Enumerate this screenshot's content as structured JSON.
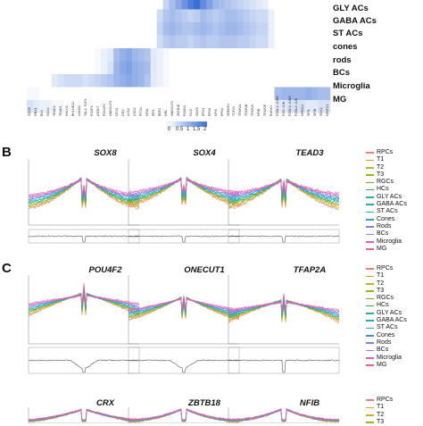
{
  "heatmap": {
    "row_labels": [
      "",
      "GLY ACs",
      "GABA ACs",
      "ST ACs",
      "cones",
      "rods",
      "BCs",
      "Microglia",
      "MG"
    ],
    "column_labels": [
      "SOX8",
      "GBX1",
      "EN1",
      "SOX4",
      "TEAD3",
      "TEAD1",
      "NHLH2",
      "BHLHE22",
      "HAND2",
      "TAL1::TCF3",
      "FOXP2",
      "ATOH7",
      "POU4F2",
      "ONECUT1",
      "OTX2",
      "CRX",
      "LHX2",
      "GSC2",
      "PITX1",
      "NFIA",
      "IRF1",
      "EBF2",
      "NRL",
      "ONECUT2",
      "ZBTB18",
      "FOXN3",
      "GLI3",
      "SOX9",
      "RFX3",
      "RFX6",
      "NFIX",
      "RFX2",
      "SREBF1",
      "TCF21",
      "TFAP2A",
      "TFAP2B",
      "TFAP2C",
      "NFIB",
      "TFAP2E",
      "RUNX1",
      "FOSL1::JUNB",
      "FOS::JUN",
      "FOSL1::JUNB",
      "FOSL2::JUN",
      "NFE2L2",
      "SPI1",
      "SPIB",
      "SOX2",
      "NFATC1"
    ],
    "colorbar": {
      "ticks": [
        "0",
        "0.5",
        "1",
        "1.5",
        "2"
      ],
      "low_color": "#ffffff",
      "high_color": "#3b6fd6"
    },
    "cells": [
      [
        0,
        0,
        0,
        0,
        0,
        0,
        0,
        0,
        0,
        0,
        0,
        0,
        0,
        0,
        0,
        0,
        0,
        0,
        0,
        0,
        0,
        0,
        0.6,
        0.9,
        1.2,
        1.5,
        1.8,
        2,
        1.6,
        1.3,
        1.0,
        0.9,
        0.8,
        0.7,
        0.6,
        0.5,
        0.4,
        0.3,
        0.2,
        0,
        0,
        0,
        0,
        0,
        0,
        0,
        0,
        0,
        0
      ],
      [
        0,
        0,
        0,
        0,
        0,
        0,
        0,
        0,
        0,
        0,
        0,
        0,
        0,
        0,
        0,
        0,
        0,
        0,
        0,
        0,
        0,
        0.5,
        0.8,
        0.9,
        0.8,
        0.7,
        0.6,
        0.7,
        0.9,
        0.8,
        0.7,
        0.8,
        0.9,
        0.9,
        0.8,
        0.7,
        0.6,
        0.5,
        0.5,
        0.2,
        0,
        0,
        0,
        0,
        0,
        0,
        0,
        0,
        0
      ],
      [
        0,
        0,
        0,
        0,
        0,
        0,
        0,
        0,
        0,
        0,
        0,
        0,
        0,
        0,
        0,
        0,
        0,
        0,
        0,
        0,
        0,
        0.6,
        0.9,
        1.0,
        0.9,
        0.8,
        0.8,
        0.9,
        1.0,
        0.9,
        0.8,
        0.9,
        1.0,
        1.0,
        0.9,
        0.8,
        0.7,
        0.6,
        0.6,
        0.2,
        0,
        0,
        0,
        0,
        0,
        0,
        0,
        0,
        0
      ],
      [
        0,
        0,
        0,
        0,
        0,
        0,
        0,
        0,
        0,
        0,
        0,
        0,
        0,
        0,
        0,
        0,
        0,
        0,
        0,
        0,
        0,
        0.5,
        0.7,
        0.8,
        0.7,
        0.7,
        0.6,
        0.7,
        0.8,
        0.7,
        0.7,
        0.8,
        0.8,
        0.8,
        0.7,
        0.7,
        0.6,
        0.5,
        0.5,
        0.2,
        0,
        0,
        0,
        0,
        0,
        0,
        0,
        0,
        0
      ],
      [
        0,
        0,
        0,
        0,
        0,
        0,
        0,
        0,
        0,
        0,
        0,
        0.1,
        0.2,
        0.3,
        0.9,
        1.1,
        1.2,
        1.0,
        0.9,
        0.8,
        0.3,
        0.2,
        0.1,
        0,
        0,
        0,
        0,
        0,
        0,
        0,
        0,
        0,
        0,
        0,
        0,
        0,
        0,
        0,
        0,
        0,
        0,
        0,
        0,
        0,
        0,
        0,
        0,
        0,
        0
      ],
      [
        0,
        0,
        0,
        0,
        0,
        0,
        0,
        0,
        0,
        0,
        0,
        0.1,
        0.2,
        0.4,
        1.0,
        1.2,
        1.3,
        1.1,
        1.0,
        0.9,
        0.3,
        0.2,
        0.1,
        0,
        0,
        0,
        0,
        0,
        0,
        0,
        0,
        0,
        0,
        0,
        0,
        0,
        0,
        0,
        0,
        0,
        0,
        0,
        0,
        0,
        0,
        0,
        0,
        0,
        0
      ],
      [
        0,
        0,
        0,
        0,
        0.3,
        0.4,
        0.5,
        0.5,
        0.5,
        0.4,
        0.5,
        0.6,
        0.7,
        0.8,
        1.0,
        1.1,
        1.2,
        1.1,
        1.0,
        0.8,
        0.3,
        0.2,
        0.1,
        0,
        0,
        0,
        0,
        0,
        0,
        0,
        0,
        0,
        0,
        0,
        0,
        0,
        0,
        0,
        0,
        0,
        0,
        0,
        0,
        0,
        0,
        0,
        0,
        0,
        0
      ],
      [
        0.1,
        0.1,
        0,
        0,
        0,
        0,
        0,
        0,
        0,
        0,
        0,
        0,
        0,
        0,
        0,
        0,
        0,
        0,
        0,
        0,
        0,
        0,
        0,
        0,
        0,
        0,
        0,
        0,
        0,
        0,
        0,
        0,
        0,
        0,
        0,
        0,
        0,
        0,
        0,
        0,
        0.9,
        1.0,
        1.0,
        1.0,
        1.0,
        1.1,
        1.0,
        0.9,
        0.9
      ],
      [
        0.4,
        0.3,
        0.2,
        0.2,
        0.1,
        0.1,
        0,
        0,
        0,
        0,
        0,
        0,
        0,
        0,
        0,
        0,
        0,
        0,
        0,
        0,
        0,
        0,
        0,
        0,
        0,
        0,
        0,
        0,
        0,
        0,
        0,
        0,
        0,
        0,
        0,
        0,
        0,
        0,
        0,
        0,
        0.3,
        0.3,
        0.4,
        0.4,
        0.4,
        0.3,
        0.3,
        0.4,
        0.4
      ]
    ]
  },
  "panels": [
    {
      "letter": "B",
      "tracks": [
        "SOX8",
        "SOX4",
        "TEAD3"
      ]
    },
    {
      "letter": "C",
      "tracks": [
        "POU4F2",
        "ONECUT1",
        "TFAP2A"
      ]
    },
    {
      "letter": "",
      "tracks": [
        "CRX",
        "ZBTB18",
        "NFIB"
      ]
    }
  ],
  "legend": [
    {
      "label": "RPCs",
      "color": "#f08080"
    },
    {
      "label": "T1",
      "color": "#e0a030"
    },
    {
      "label": "T2",
      "color": "#c8b020"
    },
    {
      "label": "T3",
      "color": "#a0b020"
    },
    {
      "label": "RGCs",
      "color": "#70a830"
    },
    {
      "label": "HCs",
      "color": "#40a850"
    },
    {
      "label": "GLY ACs",
      "color": "#30b090"
    },
    {
      "label": "GABA ACs",
      "color": "#20b0b0"
    },
    {
      "label": "ST ACs",
      "color": "#30a8d0"
    },
    {
      "label": "Cones",
      "color": "#4090e0"
    },
    {
      "label": "Rods",
      "color": "#8080e8"
    },
    {
      "label": "BCs",
      "color": "#b070e0"
    },
    {
      "label": "Microglia",
      "color": "#e060c0"
    },
    {
      "label": "MG",
      "color": "#f06090"
    }
  ]
}
